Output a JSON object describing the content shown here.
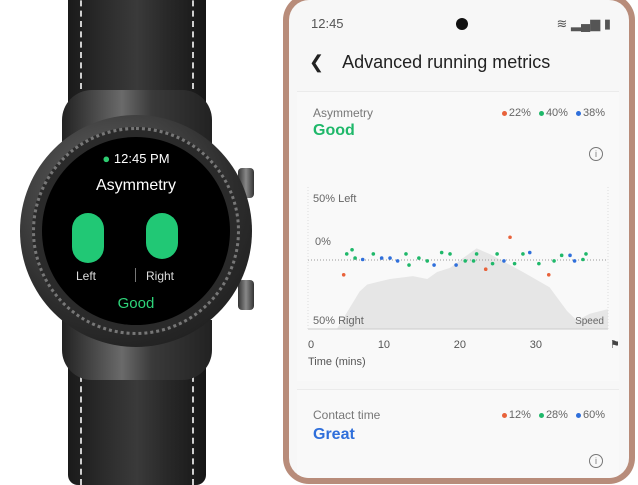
{
  "watch": {
    "time": "12:45 PM",
    "title": "Asymmetry",
    "left_label": "Left",
    "right_label": "Right",
    "rating": "Good",
    "accent": "#21c875"
  },
  "phone": {
    "status_time": "12:45",
    "header_title": "Advanced running metrics",
    "asymmetry": {
      "title": "Asymmetry",
      "rating": "Good",
      "rating_color": "#1fb86a",
      "legend": [
        {
          "color": "#e8623a",
          "label": "22%"
        },
        {
          "color": "#1fb86a",
          "label": "40%"
        },
        {
          "color": "#2f6fdb",
          "label": "38%"
        }
      ]
    },
    "contact": {
      "title": "Contact time",
      "rating": "Great",
      "rating_color": "#2f6fdb",
      "legend": [
        {
          "color": "#e8623a",
          "label": "12%"
        },
        {
          "color": "#1fb86a",
          "label": "28%"
        },
        {
          "color": "#2f6fdb",
          "label": "60%"
        }
      ]
    }
  },
  "chart_data": {
    "type": "scatter",
    "top_label": "50% Left",
    "zero_label": "0%",
    "bottom_label": "50% Right",
    "area_label": "Speed",
    "xlabel": "Time (mins)",
    "xticks": [
      "0",
      "10",
      "20",
      "30"
    ],
    "xlim": [
      0,
      39.5
    ],
    "ylim": [
      -50,
      50
    ],
    "points": [
      [
        4.7,
        -11,
        "o"
      ],
      [
        5.1,
        4,
        "g"
      ],
      [
        5.8,
        7,
        "g"
      ],
      [
        6.2,
        1,
        "g"
      ],
      [
        7.2,
        0,
        "b"
      ],
      [
        8.6,
        4,
        "g"
      ],
      [
        9.7,
        1,
        "b"
      ],
      [
        10.8,
        1,
        "b"
      ],
      [
        11.8,
        -1,
        "b"
      ],
      [
        12.9,
        4,
        "g"
      ],
      [
        13.3,
        -4,
        "g"
      ],
      [
        14.6,
        1,
        "g"
      ],
      [
        15.7,
        -1,
        "g"
      ],
      [
        16.6,
        -4,
        "b"
      ],
      [
        17.6,
        5,
        "g"
      ],
      [
        18.7,
        4,
        "g"
      ],
      [
        19.5,
        -4,
        "b"
      ],
      [
        20.7,
        -1,
        "g"
      ],
      [
        21.8,
        -1,
        "g"
      ],
      [
        22.2,
        4,
        "g"
      ],
      [
        23.4,
        -7,
        "o"
      ],
      [
        24.3,
        -3,
        "g"
      ],
      [
        24.9,
        4,
        "g"
      ],
      [
        25.8,
        -1,
        "b"
      ],
      [
        26.6,
        16,
        "o"
      ],
      [
        27.2,
        -3,
        "g"
      ],
      [
        28.3,
        4,
        "g"
      ],
      [
        29.2,
        5,
        "b"
      ],
      [
        30.4,
        -3,
        "g"
      ],
      [
        31.7,
        -11,
        "o"
      ],
      [
        32.4,
        -1,
        "g"
      ],
      [
        33.4,
        3,
        "g"
      ],
      [
        34.5,
        3,
        "b"
      ],
      [
        35.1,
        -1,
        "b"
      ],
      [
        36.2,
        0,
        "g"
      ],
      [
        36.6,
        4,
        "g"
      ]
    ],
    "colors": {
      "o": "#e8623a",
      "g": "#1fb86a",
      "b": "#2f6fdb",
      "area": "#e6e6e6"
    },
    "speed_profile": [
      [
        3.8,
        0
      ],
      [
        6.8,
        27
      ],
      [
        7.8,
        32
      ],
      [
        10.8,
        36
      ],
      [
        13.8,
        38
      ],
      [
        15.7,
        36
      ],
      [
        17,
        41
      ],
      [
        18.7,
        44
      ],
      [
        20.4,
        51
      ],
      [
        22.2,
        58
      ],
      [
        23.9,
        54
      ],
      [
        28.3,
        41
      ],
      [
        31.8,
        30
      ],
      [
        34.1,
        13
      ],
      [
        35.4,
        6
      ],
      [
        37.1,
        11
      ],
      [
        39.3,
        14
      ],
      [
        39.5,
        14
      ]
    ]
  }
}
